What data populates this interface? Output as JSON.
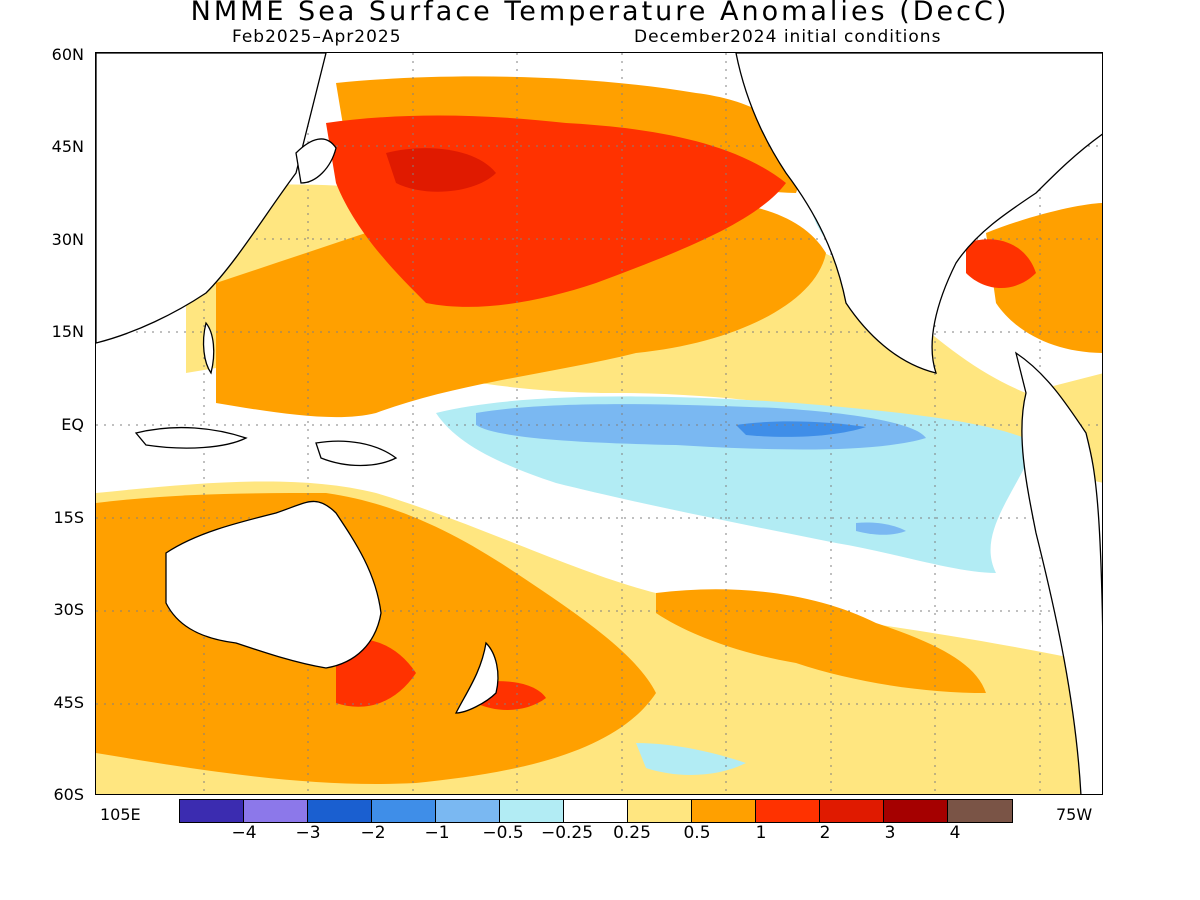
{
  "title": "NMME Sea Surface Temperature Anomalies (DecC)",
  "subtitle_left": "Feb2025–Apr2025",
  "subtitle_right": "December2024 initial conditions",
  "y_ticks": [
    "60N",
    "45N",
    "30N",
    "15N",
    "EQ",
    "15S",
    "30S",
    "45S",
    "60S"
  ],
  "x_ticks": {
    "left": "105E",
    "right": "75W"
  },
  "colorbar": {
    "labels": [
      "−4",
      "−3",
      "−2",
      "−1",
      "−0.5",
      "−0.25",
      "0.25",
      "0.5",
      "1",
      "2",
      "3",
      "4"
    ],
    "colors": [
      "#3b2cb0",
      "#8c78ea",
      "#1a5fd0",
      "#3f8ee8",
      "#7ab8f2",
      "#b2ecf4",
      "#ffffff",
      "#ffe680",
      "#ffa000",
      "#ff3200",
      "#e01a00",
      "#a50000",
      "#7a5446"
    ]
  },
  "legend": {
    "land_fill": "#ffffff",
    "coast_color": "#000000"
  }
}
